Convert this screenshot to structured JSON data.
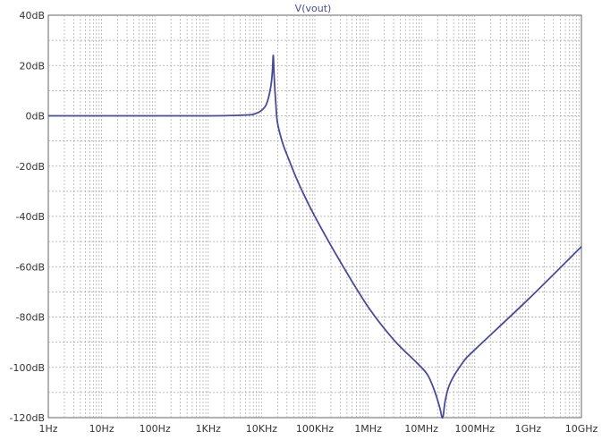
{
  "chart_data": {
    "type": "line",
    "title": "V(vout)",
    "xscale": "log",
    "xlim": [
      1,
      10000000000
    ],
    "ylim": [
      -120,
      40
    ],
    "grid": true,
    "x_ticks": [
      {
        "value": 1,
        "label": "1Hz"
      },
      {
        "value": 10,
        "label": "10Hz"
      },
      {
        "value": 100,
        "label": "100Hz"
      },
      {
        "value": 1000,
        "label": "1KHz"
      },
      {
        "value": 10000,
        "label": "10KHz"
      },
      {
        "value": 100000,
        "label": "100KHz"
      },
      {
        "value": 1000000,
        "label": "1MHz"
      },
      {
        "value": 10000000,
        "label": "10MHz"
      },
      {
        "value": 100000000,
        "label": "100MHz"
      },
      {
        "value": 1000000000,
        "label": "1GHz"
      },
      {
        "value": 10000000000,
        "label": "10GHz"
      }
    ],
    "y_ticks": [
      {
        "value": 40,
        "label": "40dB"
      },
      {
        "value": 20,
        "label": "20dB"
      },
      {
        "value": 0,
        "label": "0dB"
      },
      {
        "value": -20,
        "label": "-20dB"
      },
      {
        "value": -40,
        "label": "-40dB"
      },
      {
        "value": -60,
        "label": "-60dB"
      },
      {
        "value": -80,
        "label": "-80dB"
      },
      {
        "value": -100,
        "label": "-100dB"
      },
      {
        "value": -120,
        "label": "-120dB"
      }
    ],
    "series": [
      {
        "color": "#4a4a9a",
        "points": [
          [
            1,
            0
          ],
          [
            10,
            0
          ],
          [
            100,
            0
          ],
          [
            1000,
            0
          ],
          [
            5000,
            0.3
          ],
          [
            8000,
            1
          ],
          [
            11000,
            3
          ],
          [
            13000,
            6
          ],
          [
            15000,
            12
          ],
          [
            16000,
            18
          ],
          [
            16600,
            24
          ],
          [
            17200,
            16
          ],
          [
            18500,
            5
          ],
          [
            20000,
            -3
          ],
          [
            25000,
            -11
          ],
          [
            32000,
            -17
          ],
          [
            50000,
            -27
          ],
          [
            100000,
            -40
          ],
          [
            300000,
            -58
          ],
          [
            1000000,
            -76
          ],
          [
            3000000,
            -89
          ],
          [
            8000000,
            -98
          ],
          [
            13000000,
            -103
          ],
          [
            18000000,
            -110
          ],
          [
            22000000,
            -116
          ],
          [
            25000000,
            -120
          ],
          [
            28000000,
            -113
          ],
          [
            35000000,
            -106
          ],
          [
            60000000,
            -98
          ],
          [
            100000000,
            -93
          ],
          [
            1000000000,
            -73
          ],
          [
            10000000000,
            -52
          ]
        ]
      }
    ],
    "colors": {
      "grid": "#a8a8a8",
      "frame": "#666666",
      "title": "#4a4a9a"
    }
  }
}
